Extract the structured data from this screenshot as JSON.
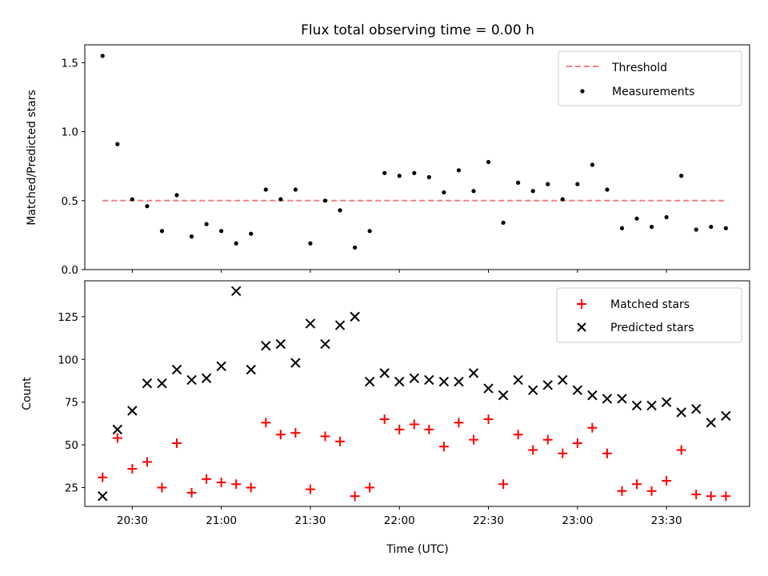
{
  "chart_data": [
    {
      "type": "scatter",
      "title": "Flux total observing time = 0.00 h",
      "xlabel": "",
      "ylabel": "Matched/Predicted stars",
      "xlim": [
        "20:14",
        "23:58"
      ],
      "ylim": [
        0,
        1.63
      ],
      "yticks": [
        "0.0",
        "0.5",
        "1.0",
        "1.5"
      ],
      "legend_position": "upper right",
      "series": [
        {
          "name": "Threshold",
          "style": "dashed-line",
          "color": "#f08080",
          "x": [
            "20:20",
            "23:50"
          ],
          "y": [
            0.5,
            0.5
          ]
        },
        {
          "name": "Measurements",
          "style": "dot",
          "color": "#000000",
          "x": [
            "20:20",
            "20:25",
            "20:30",
            "20:35",
            "20:40",
            "20:45",
            "20:50",
            "20:55",
            "21:00",
            "21:05",
            "21:10",
            "21:15",
            "21:20",
            "21:25",
            "21:30",
            "21:35",
            "21:40",
            "21:45",
            "21:50",
            "21:55",
            "22:00",
            "22:05",
            "22:10",
            "22:15",
            "22:20",
            "22:25",
            "22:30",
            "22:35",
            "22:40",
            "22:45",
            "22:50",
            "22:55",
            "23:00",
            "23:05",
            "23:10",
            "23:15",
            "23:20",
            "23:25",
            "23:30",
            "23:35",
            "23:40",
            "23:45",
            "23:50"
          ],
          "y": [
            1.55,
            0.91,
            0.51,
            0.46,
            0.28,
            0.54,
            0.24,
            0.33,
            0.28,
            0.19,
            0.26,
            0.58,
            0.51,
            0.58,
            0.19,
            0.5,
            0.43,
            0.16,
            0.28,
            0.7,
            0.68,
            0.7,
            0.67,
            0.56,
            0.72,
            0.57,
            0.78,
            0.34,
            0.63,
            0.57,
            0.62,
            0.51,
            0.62,
            0.76,
            0.58,
            0.3,
            0.37,
            0.31,
            0.38,
            0.68,
            0.29,
            0.31,
            0.3
          ]
        }
      ]
    },
    {
      "type": "scatter",
      "title": "",
      "xlabel": "Time (UTC)",
      "ylabel": "Count",
      "xlim": [
        "20:14",
        "23:58"
      ],
      "ylim": [
        14,
        146
      ],
      "yticks": [
        "25",
        "50",
        "75",
        "100",
        "125"
      ],
      "xticks": [
        "20:30",
        "21:00",
        "21:30",
        "22:00",
        "22:30",
        "23:00",
        "23:30"
      ],
      "legend_position": "upper right",
      "series": [
        {
          "name": "Matched stars",
          "style": "plus",
          "color": "#ff0000",
          "x": [
            "20:20",
            "20:25",
            "20:30",
            "20:35",
            "20:40",
            "20:45",
            "20:50",
            "20:55",
            "21:00",
            "21:05",
            "21:10",
            "21:15",
            "21:20",
            "21:25",
            "21:30",
            "21:35",
            "21:40",
            "21:45",
            "21:50",
            "21:55",
            "22:00",
            "22:05",
            "22:10",
            "22:15",
            "22:20",
            "22:25",
            "22:30",
            "22:35",
            "22:40",
            "22:45",
            "22:50",
            "22:55",
            "23:00",
            "23:05",
            "23:10",
            "23:15",
            "23:20",
            "23:25",
            "23:30",
            "23:35",
            "23:40",
            "23:45",
            "23:50"
          ],
          "y": [
            31,
            54,
            36,
            40,
            25,
            51,
            22,
            30,
            28,
            27,
            25,
            63,
            56,
            57,
            24,
            55,
            52,
            20,
            25,
            65,
            59,
            62,
            59,
            49,
            63,
            53,
            65,
            27,
            56,
            47,
            53,
            45,
            51,
            60,
            45,
            23,
            27,
            23,
            29,
            47,
            21,
            20,
            20
          ]
        },
        {
          "name": "Predicted stars",
          "style": "x",
          "color": "#000000",
          "x": [
            "20:20",
            "20:25",
            "20:30",
            "20:35",
            "20:40",
            "20:45",
            "20:50",
            "20:55",
            "21:00",
            "21:05",
            "21:10",
            "21:15",
            "21:20",
            "21:25",
            "21:30",
            "21:35",
            "21:40",
            "21:45",
            "21:50",
            "21:55",
            "22:00",
            "22:05",
            "22:10",
            "22:15",
            "22:20",
            "22:25",
            "22:30",
            "22:35",
            "22:40",
            "22:45",
            "22:50",
            "22:55",
            "23:00",
            "23:05",
            "23:10",
            "23:15",
            "23:20",
            "23:25",
            "23:30",
            "23:35",
            "23:40",
            "23:45",
            "23:50"
          ],
          "y": [
            20,
            59,
            70,
            86,
            86,
            94,
            88,
            89,
            96,
            140,
            94,
            108,
            109,
            98,
            121,
            109,
            120,
            125,
            87,
            92,
            87,
            89,
            88,
            87,
            87,
            92,
            83,
            79,
            88,
            82,
            85,
            88,
            82,
            79,
            77,
            77,
            73,
            73,
            75,
            69,
            71,
            63,
            67
          ]
        }
      ]
    }
  ]
}
